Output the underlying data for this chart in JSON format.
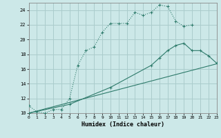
{
  "xlabel": "Humidex (Indice chaleur)",
  "bg_color": "#cce8e8",
  "grid_color": "#aacccc",
  "line_color": "#2d7a6a",
  "xlim": [
    0,
    23
  ],
  "ylim": [
    10,
    25
  ],
  "yticks": [
    10,
    12,
    14,
    16,
    18,
    20,
    22,
    24
  ],
  "xticks": [
    0,
    1,
    2,
    3,
    4,
    5,
    6,
    7,
    8,
    9,
    10,
    11,
    12,
    13,
    14,
    15,
    16,
    17,
    18,
    19,
    20,
    21,
    22,
    23
  ],
  "curve1_x": [
    0,
    1,
    2,
    3,
    4,
    5,
    6,
    7,
    8,
    9,
    10,
    11,
    12,
    13,
    14,
    15,
    16,
    17,
    18,
    19,
    20
  ],
  "curve1_y": [
    11.0,
    10.2,
    10.0,
    10.5,
    10.5,
    12.0,
    16.5,
    18.5,
    19.0,
    21.0,
    22.2,
    22.2,
    22.2,
    23.7,
    23.3,
    23.7,
    24.7,
    24.5,
    22.5,
    21.8,
    22.0
  ],
  "curve2_x": [
    0,
    5,
    10,
    15,
    16,
    17,
    18,
    19,
    20,
    21,
    22,
    23
  ],
  "curve2_y": [
    10.0,
    11.2,
    13.5,
    16.5,
    17.5,
    18.5,
    19.2,
    19.5,
    18.5,
    18.5,
    17.8,
    16.8
  ],
  "curve3_x": [
    0,
    23
  ],
  "curve3_y": [
    10.0,
    16.7
  ]
}
